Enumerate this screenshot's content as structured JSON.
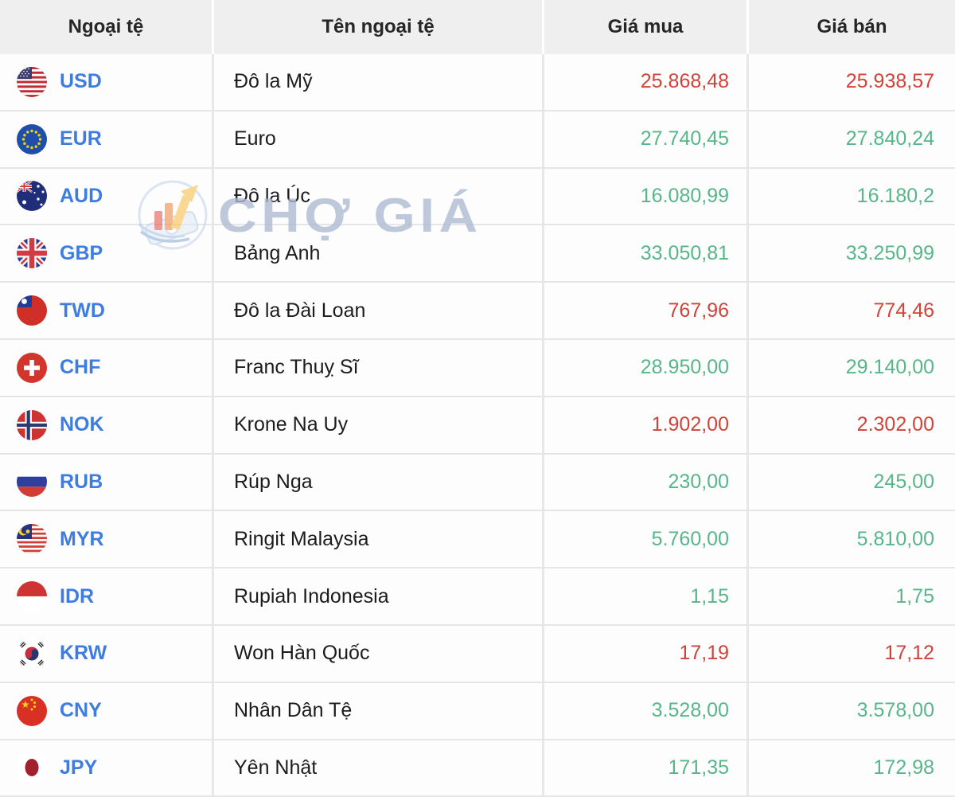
{
  "header": {
    "currency": "Ngoại tệ",
    "name": "Tên ngoại tệ",
    "buy": "Giá mua",
    "sell": "Giá bán"
  },
  "rows": [
    {
      "code": "USD",
      "flag_icon": "usd-flag-icon",
      "name": "Đô la Mỹ",
      "buy": "25.868,48",
      "sell": "25.938,57",
      "color": "red"
    },
    {
      "code": "EUR",
      "flag_icon": "eur-flag-icon",
      "name": "Euro",
      "buy": "27.740,45",
      "sell": "27.840,24",
      "color": "green"
    },
    {
      "code": "AUD",
      "flag_icon": "aud-flag-icon",
      "name": "Đô la Úc",
      "buy": "16.080,99",
      "sell": "16.180,2",
      "color": "green"
    },
    {
      "code": "GBP",
      "flag_icon": "gbp-flag-icon",
      "name": "Bảng Anh",
      "buy": "33.050,81",
      "sell": "33.250,99",
      "color": "green"
    },
    {
      "code": "TWD",
      "flag_icon": "twd-flag-icon",
      "name": "Đô la Đài Loan",
      "buy": "767,96",
      "sell": "774,46",
      "color": "red"
    },
    {
      "code": "CHF",
      "flag_icon": "chf-flag-icon",
      "name": "Franc Thuỵ Sĩ",
      "buy": "28.950,00",
      "sell": "29.140,00",
      "color": "green"
    },
    {
      "code": "NOK",
      "flag_icon": "nok-flag-icon",
      "name": "Krone Na Uy",
      "buy": "1.902,00",
      "sell": "2.302,00",
      "color": "red"
    },
    {
      "code": "RUB",
      "flag_icon": "rub-flag-icon",
      "name": "Rúp Nga",
      "buy": "230,00",
      "sell": "245,00",
      "color": "green"
    },
    {
      "code": "MYR",
      "flag_icon": "myr-flag-icon",
      "name": "Ringit Malaysia",
      "buy": "5.760,00",
      "sell": "5.810,00",
      "color": "green"
    },
    {
      "code": "IDR",
      "flag_icon": "idr-flag-icon",
      "name": "Rupiah Indonesia",
      "buy": "1,15",
      "sell": "1,75",
      "color": "green"
    },
    {
      "code": "KRW",
      "flag_icon": "krw-flag-icon",
      "name": "Won Hàn Quốc",
      "buy": "17,19",
      "sell": "17,12",
      "color": "red"
    },
    {
      "code": "CNY",
      "flag_icon": "cny-flag-icon",
      "name": "Nhân Dân Tệ",
      "buy": "3.528,00",
      "sell": "3.578,00",
      "color": "green"
    },
    {
      "code": "JPY",
      "flag_icon": "jpy-flag-icon",
      "name": "Yên Nhật",
      "buy": "171,35",
      "sell": "172,98",
      "color": "green"
    }
  ],
  "watermark": {
    "text": "CHỢ GIÁ",
    "logo_icon": "cho-gia-logo-icon"
  },
  "colors": {
    "red": "#d04339",
    "green": "#57b689",
    "code_blue": "#3d7de2",
    "header_bg": "#efeff0",
    "watermark_text": "#aab8d1"
  }
}
